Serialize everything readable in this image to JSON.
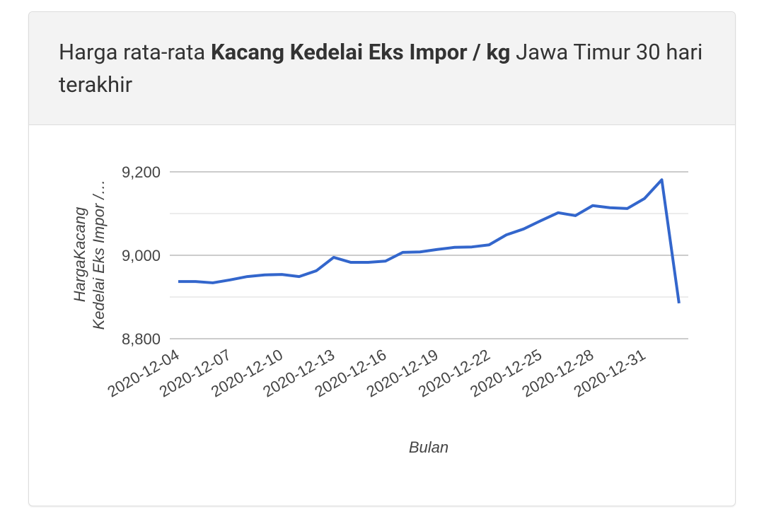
{
  "header": {
    "title": [
      "Harga rata-rata",
      "Kacang Kedelai Eks Impor / kg",
      "Jawa Timur 30 hari terakhir"
    ]
  },
  "chart_data": {
    "type": "line",
    "ylabel": [
      "HargaKacang",
      "Kedelai Eks Impor /…"
    ],
    "xlabel": "Bulan",
    "categories": [
      "2020-12-04",
      null,
      null,
      "2020-12-07",
      null,
      null,
      "2020-12-10",
      null,
      null,
      "2020-12-13",
      null,
      null,
      "2020-12-16",
      null,
      null,
      "2020-12-19",
      null,
      null,
      "2020-12-22",
      null,
      null,
      "2020-12-25",
      null,
      null,
      "2020-12-28",
      null,
      null,
      "2020-12-31",
      null,
      null
    ],
    "series": [
      {
        "color": "#3366cc",
        "values": [
          8937,
          8937,
          8934,
          8941,
          8949,
          8953,
          8954,
          8949,
          8963,
          8995,
          8983,
          8983,
          8986,
          9007,
          9008,
          9014,
          9019,
          9020,
          9025,
          9049,
          9063,
          9083,
          9102,
          9095,
          9119,
          9114,
          9112,
          9136,
          9181,
          8885
        ]
      }
    ],
    "ylim": [
      8800,
      9200
    ],
    "yticks": [
      {
        "value": 8800,
        "label": "8,800"
      },
      {
        "value": 9000,
        "label": "9,000"
      },
      {
        "value": 9200,
        "label": "9,200"
      }
    ],
    "minor_yticks": [
      8900,
      9100
    ],
    "grid": true
  }
}
